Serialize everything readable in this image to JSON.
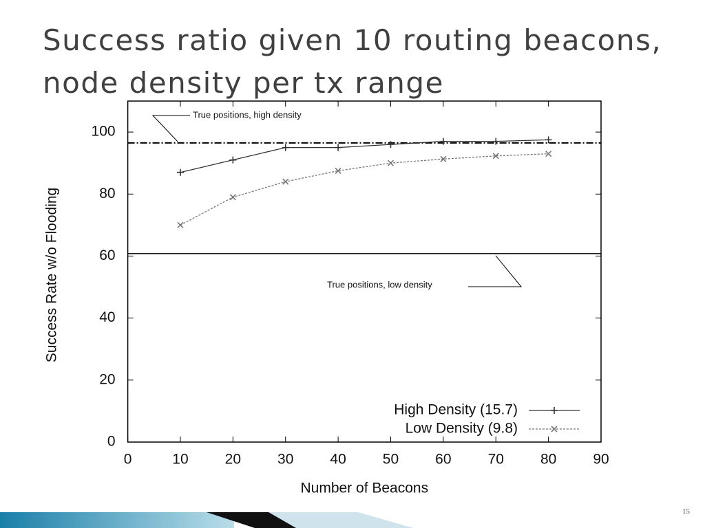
{
  "chart_data": {
    "type": "line",
    "title": "Success ratio given 10 routing beacons, node density per tx range",
    "xlabel": "Number of Beacons",
    "ylabel": "Success Rate w/o Flooding",
    "x": [
      10,
      20,
      30,
      40,
      50,
      60,
      70,
      80
    ],
    "series": [
      {
        "name": "High Density (15.7)",
        "color": "#333333",
        "marker": "plus",
        "values": [
          87,
          91,
          95,
          95,
          96,
          97,
          97,
          97.5
        ]
      },
      {
        "name": "Low Density (9.8)",
        "color": "#777777",
        "marker": "cross",
        "values": [
          70,
          79,
          84,
          87.5,
          90,
          91.3,
          92.3,
          93
        ]
      }
    ],
    "reference_lines": [
      {
        "label": "True positions, high density",
        "value": 96.5
      },
      {
        "label": "True positions, low density",
        "value": 60.8
      }
    ],
    "xlim": [
      0,
      90
    ],
    "ylim": [
      0,
      110
    ],
    "xticks": [
      0,
      10,
      20,
      30,
      40,
      50,
      60,
      70,
      80,
      90
    ],
    "yticks": [
      0,
      20,
      40,
      60,
      80,
      100
    ],
    "legend": "lower right"
  },
  "slide_number": "15"
}
